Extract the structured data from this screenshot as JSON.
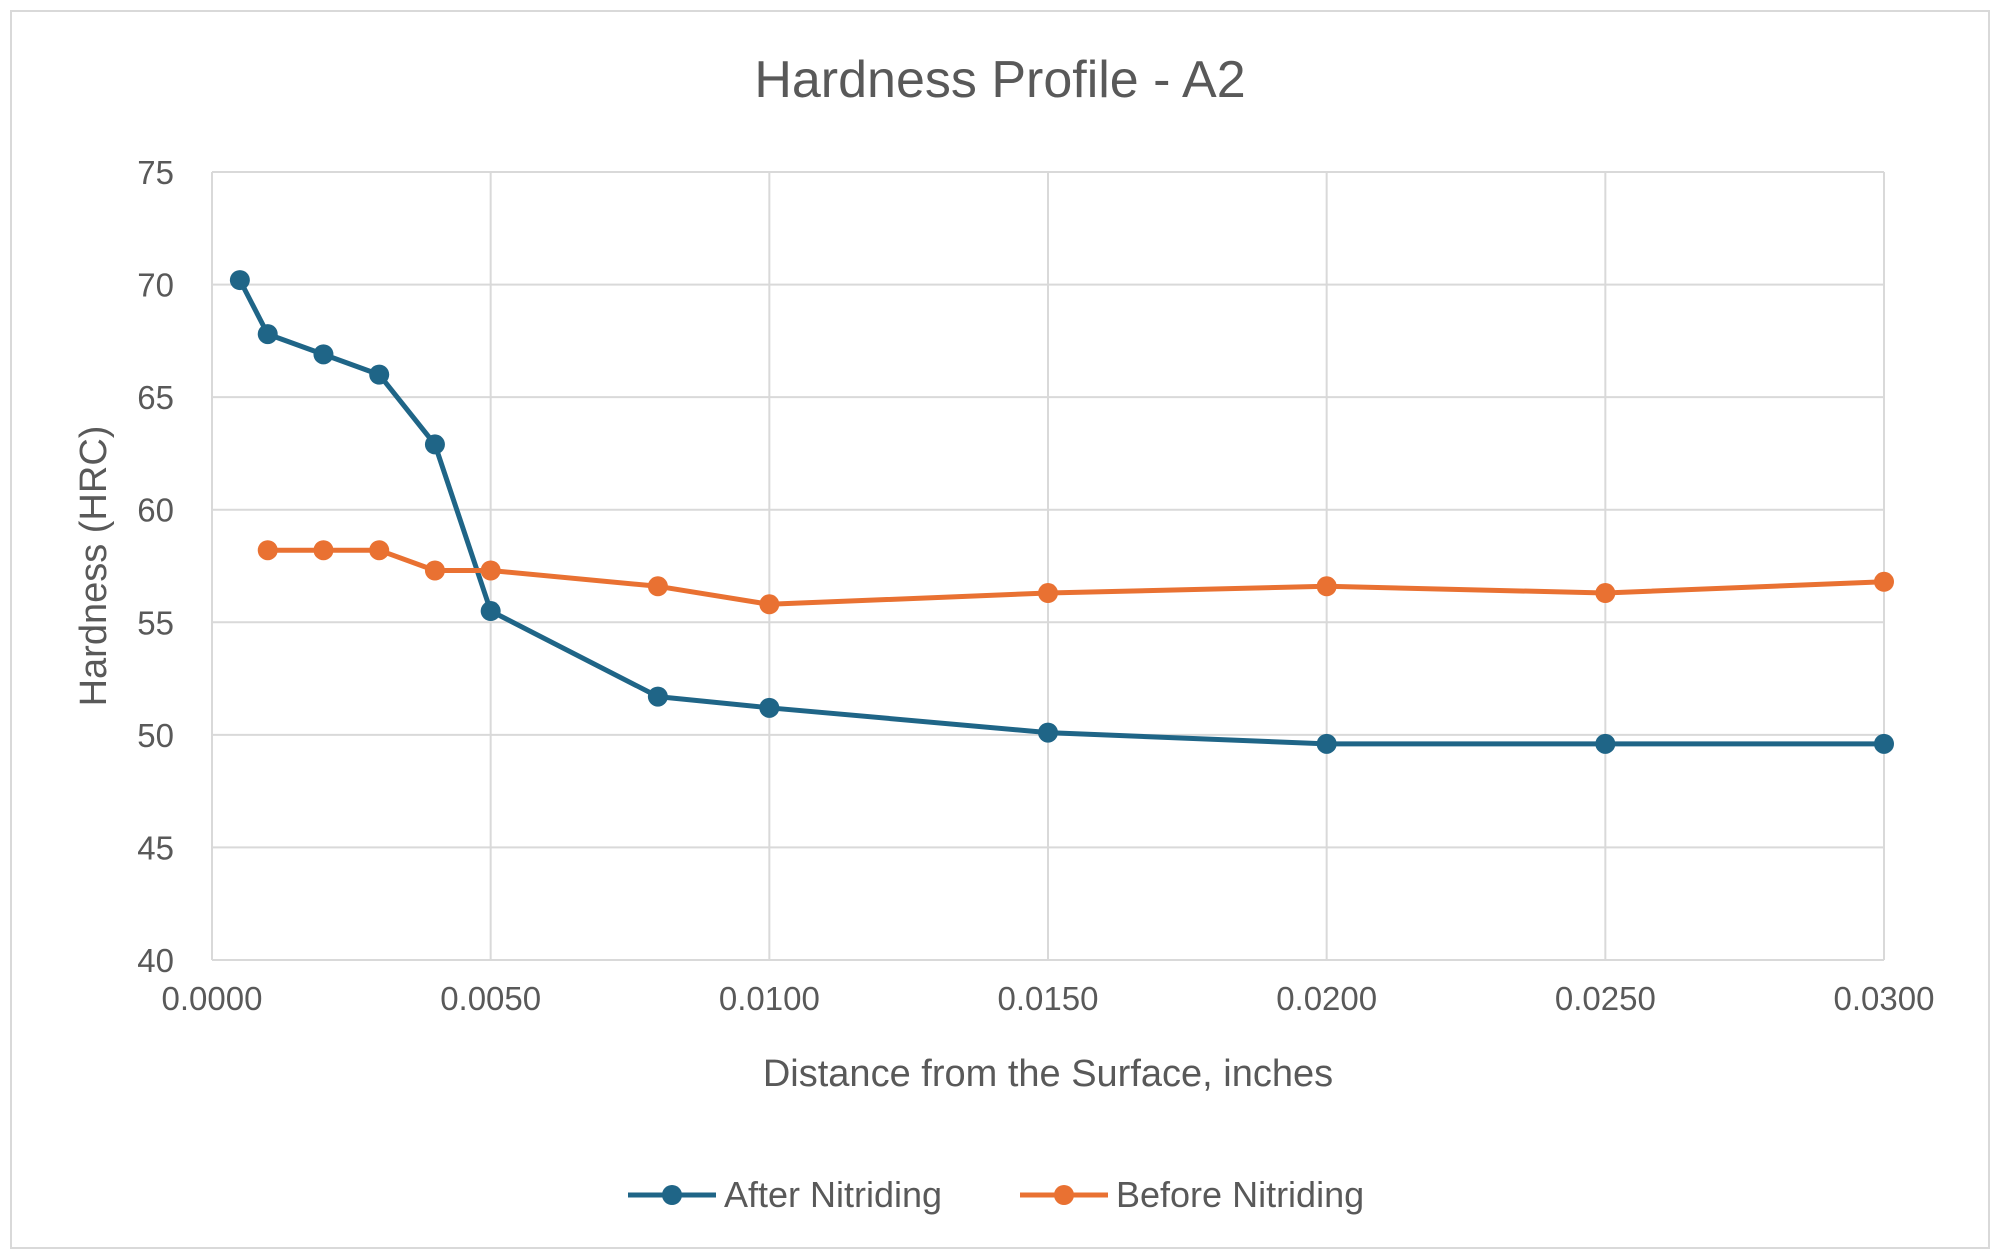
{
  "chart_data": {
    "type": "scatter",
    "title": "Hardness Profile - A2",
    "xlabel": "Distance from the Surface, inches",
    "ylabel": "Hardness (HRC)",
    "xlim": [
      0.0,
      0.03
    ],
    "ylim": [
      40,
      75
    ],
    "x_ticks": [
      "0.0000",
      "0.0050",
      "0.0100",
      "0.0150",
      "0.0200",
      "0.0250",
      "0.0300"
    ],
    "y_ticks": [
      "40",
      "45",
      "50",
      "55",
      "60",
      "65",
      "70",
      "75"
    ],
    "grid": true,
    "legend_position": "bottom",
    "series": [
      {
        "name": "After Nitriding",
        "color": "#1f6587",
        "marker": "circle",
        "x": [
          0.0005,
          0.001,
          0.002,
          0.003,
          0.004,
          0.005,
          0.008,
          0.01,
          0.015,
          0.02,
          0.025,
          0.03
        ],
        "y": [
          70.2,
          67.8,
          66.9,
          66.0,
          62.9,
          55.5,
          51.7,
          51.2,
          50.1,
          49.6,
          49.6,
          49.6
        ]
      },
      {
        "name": "Before Nitriding",
        "color": "#e97132",
        "marker": "circle",
        "x": [
          0.001,
          0.002,
          0.003,
          0.004,
          0.005,
          0.008,
          0.01,
          0.015,
          0.02,
          0.025,
          0.03
        ],
        "y": [
          58.2,
          58.2,
          58.2,
          57.3,
          57.3,
          56.6,
          55.8,
          56.3,
          56.6,
          56.3,
          56.8
        ]
      }
    ]
  }
}
